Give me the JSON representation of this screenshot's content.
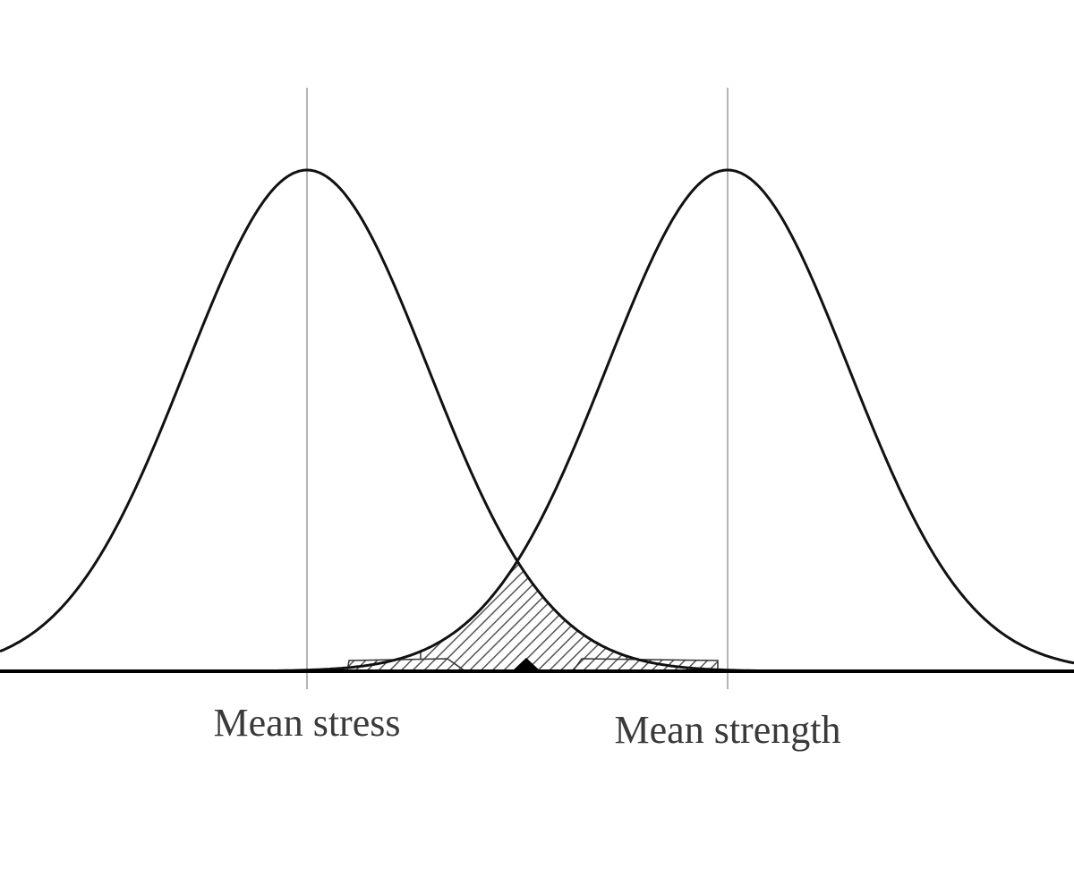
{
  "labels": {
    "mean_stress": "Mean stress",
    "mean_strength": "Mean strength"
  },
  "colors": {
    "curve": "#111111",
    "baseline": "#000000",
    "mean_line": "#999999",
    "hatch": "#555555",
    "text": "#3a3a3a"
  }
}
